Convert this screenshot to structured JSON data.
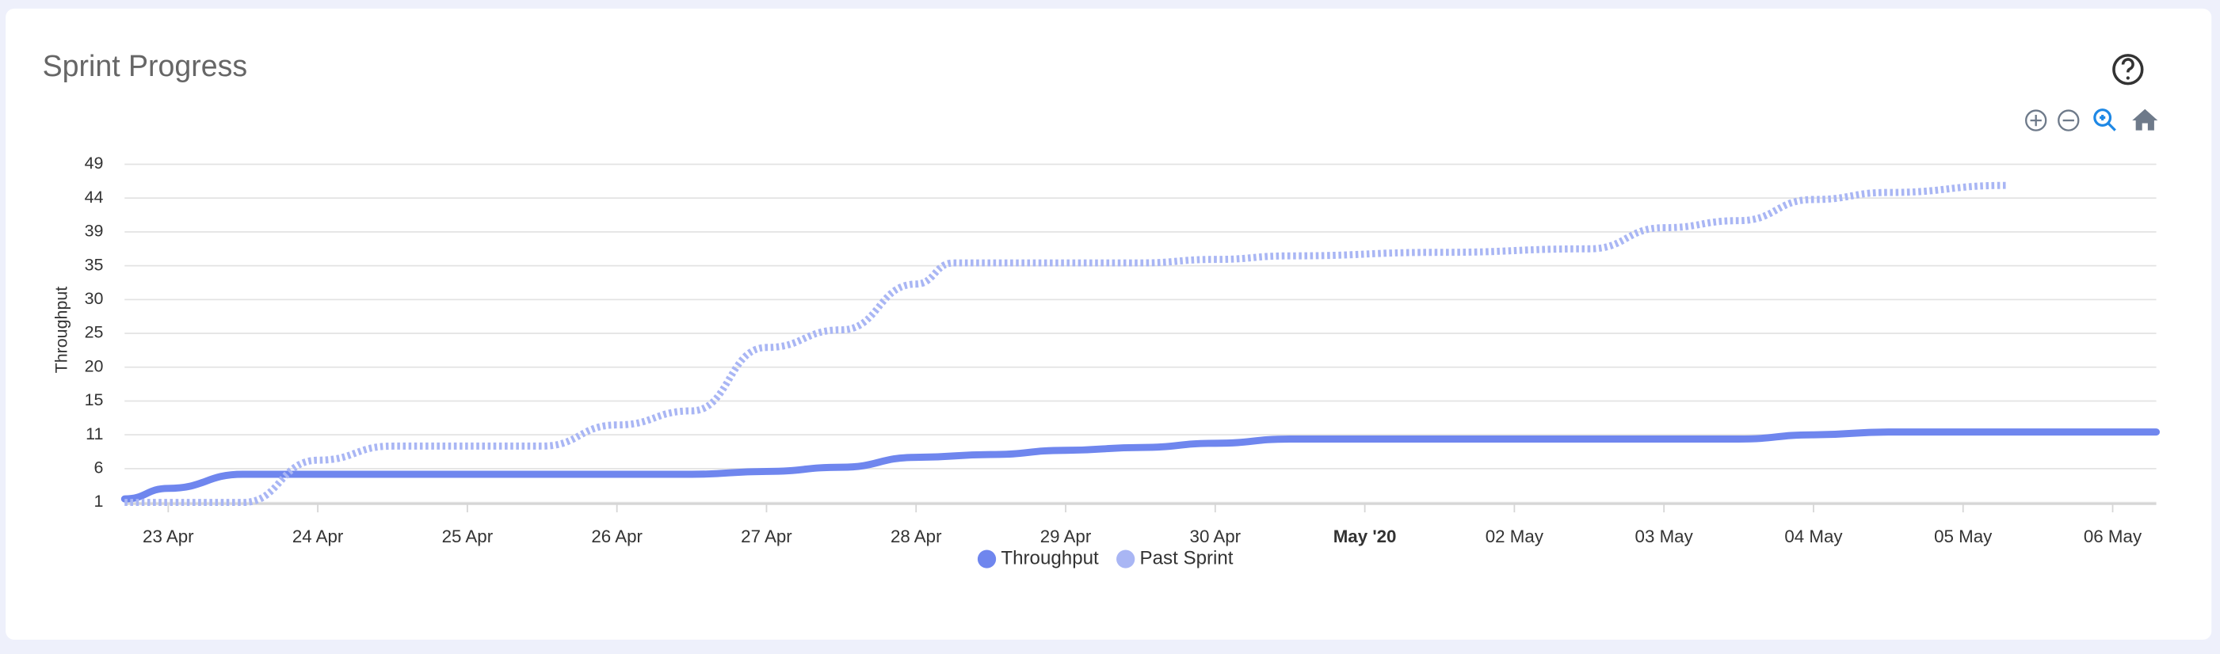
{
  "chart_data": {
    "type": "line",
    "title": "Sprint Progress",
    "y_label": "Throughput",
    "ylim": [
      1,
      49
    ],
    "yticks": [
      1,
      {
        "value": 5.8,
        "label": "6"
      },
      {
        "value": 10.6,
        "label": "11"
      },
      {
        "value": 15.4,
        "label": "15"
      },
      {
        "value": 20.2,
        "label": "20"
      },
      25,
      {
        "value": 29.8,
        "label": "30"
      },
      {
        "value": 34.6,
        "label": "35"
      },
      {
        "value": 39.4,
        "label": "39"
      },
      {
        "value": 44.2,
        "label": "44"
      },
      49
    ],
    "xlim": [
      "2020-04-22T17:00",
      "2020-05-06T07:00"
    ],
    "xticks": [
      {
        "value": "2020-04-23T00:00",
        "label": "23 Apr"
      },
      {
        "value": "2020-04-24T00:00",
        "label": "24 Apr"
      },
      {
        "value": "2020-04-25T00:00",
        "label": "25 Apr"
      },
      {
        "value": "2020-04-26T00:00",
        "label": "26 Apr"
      },
      {
        "value": "2020-04-27T00:00",
        "label": "27 Apr"
      },
      {
        "value": "2020-04-28T00:00",
        "label": "28 Apr"
      },
      {
        "value": "2020-04-29T00:00",
        "label": "29 Apr"
      },
      {
        "value": "2020-04-30T00:00",
        "label": "30 Apr"
      },
      {
        "value": "2020-05-01T00:00",
        "label": "May '20"
      },
      {
        "value": "2020-05-02T00:00",
        "label": "02 May"
      },
      {
        "value": "2020-05-03T00:00",
        "label": "03 May"
      },
      {
        "value": "2020-05-04T00:00",
        "label": "04 May"
      },
      {
        "value": "2020-05-05T00:00",
        "label": "05 May"
      },
      {
        "value": "2020-05-06T00:00",
        "label": "06 May"
      }
    ],
    "grid": true,
    "series": [
      {
        "name": "Throughput",
        "color": "#6f86ee",
        "dash": false,
        "x": [
          "2020-04-22T17:00",
          "2020-04-23T00:00",
          "2020-04-23T12:00",
          "2020-04-26T12:00",
          "2020-04-27T00:00",
          "2020-04-27T12:00",
          "2020-04-28T00:00",
          "2020-04-28T12:00",
          "2020-04-29T00:00",
          "2020-04-29T12:00",
          "2020-04-30T00:00",
          "2020-04-30T12:00",
          "2020-05-03T12:00",
          "2020-05-04T00:00",
          "2020-05-04T12:00",
          "2020-05-06T07:00"
        ],
        "values": [
          1.5,
          3,
          5,
          5,
          5.4,
          6,
          7.4,
          7.8,
          8.4,
          8.8,
          9.4,
          10,
          10,
          10.6,
          11,
          11
        ]
      },
      {
        "name": "Past Sprint",
        "color": "#a9b6f4",
        "dash": true,
        "x": [
          "2020-04-22T17:00",
          "2020-04-23T12:00",
          "2020-04-24T00:00",
          "2020-04-24T12:00",
          "2020-04-25T12:00",
          "2020-04-26T00:00",
          "2020-04-26T12:00",
          "2020-04-27T00:00",
          "2020-04-27T12:00",
          "2020-04-28T00:00",
          "2020-04-28T06:00",
          "2020-04-29T12:00",
          "2020-04-30T00:00",
          "2020-04-30T12:00",
          "2020-05-01T12:00",
          "2020-05-02T12:00",
          "2020-05-03T00:00",
          "2020-05-03T12:00",
          "2020-05-04T00:00",
          "2020-05-04T12:00",
          "2020-05-05T07:00"
        ],
        "values": [
          1,
          1,
          7,
          9,
          9,
          12,
          14,
          23,
          25.5,
          32,
          35,
          35,
          35.5,
          36,
          36.5,
          37,
          40,
          41,
          44,
          45,
          46
        ]
      }
    ]
  }
}
